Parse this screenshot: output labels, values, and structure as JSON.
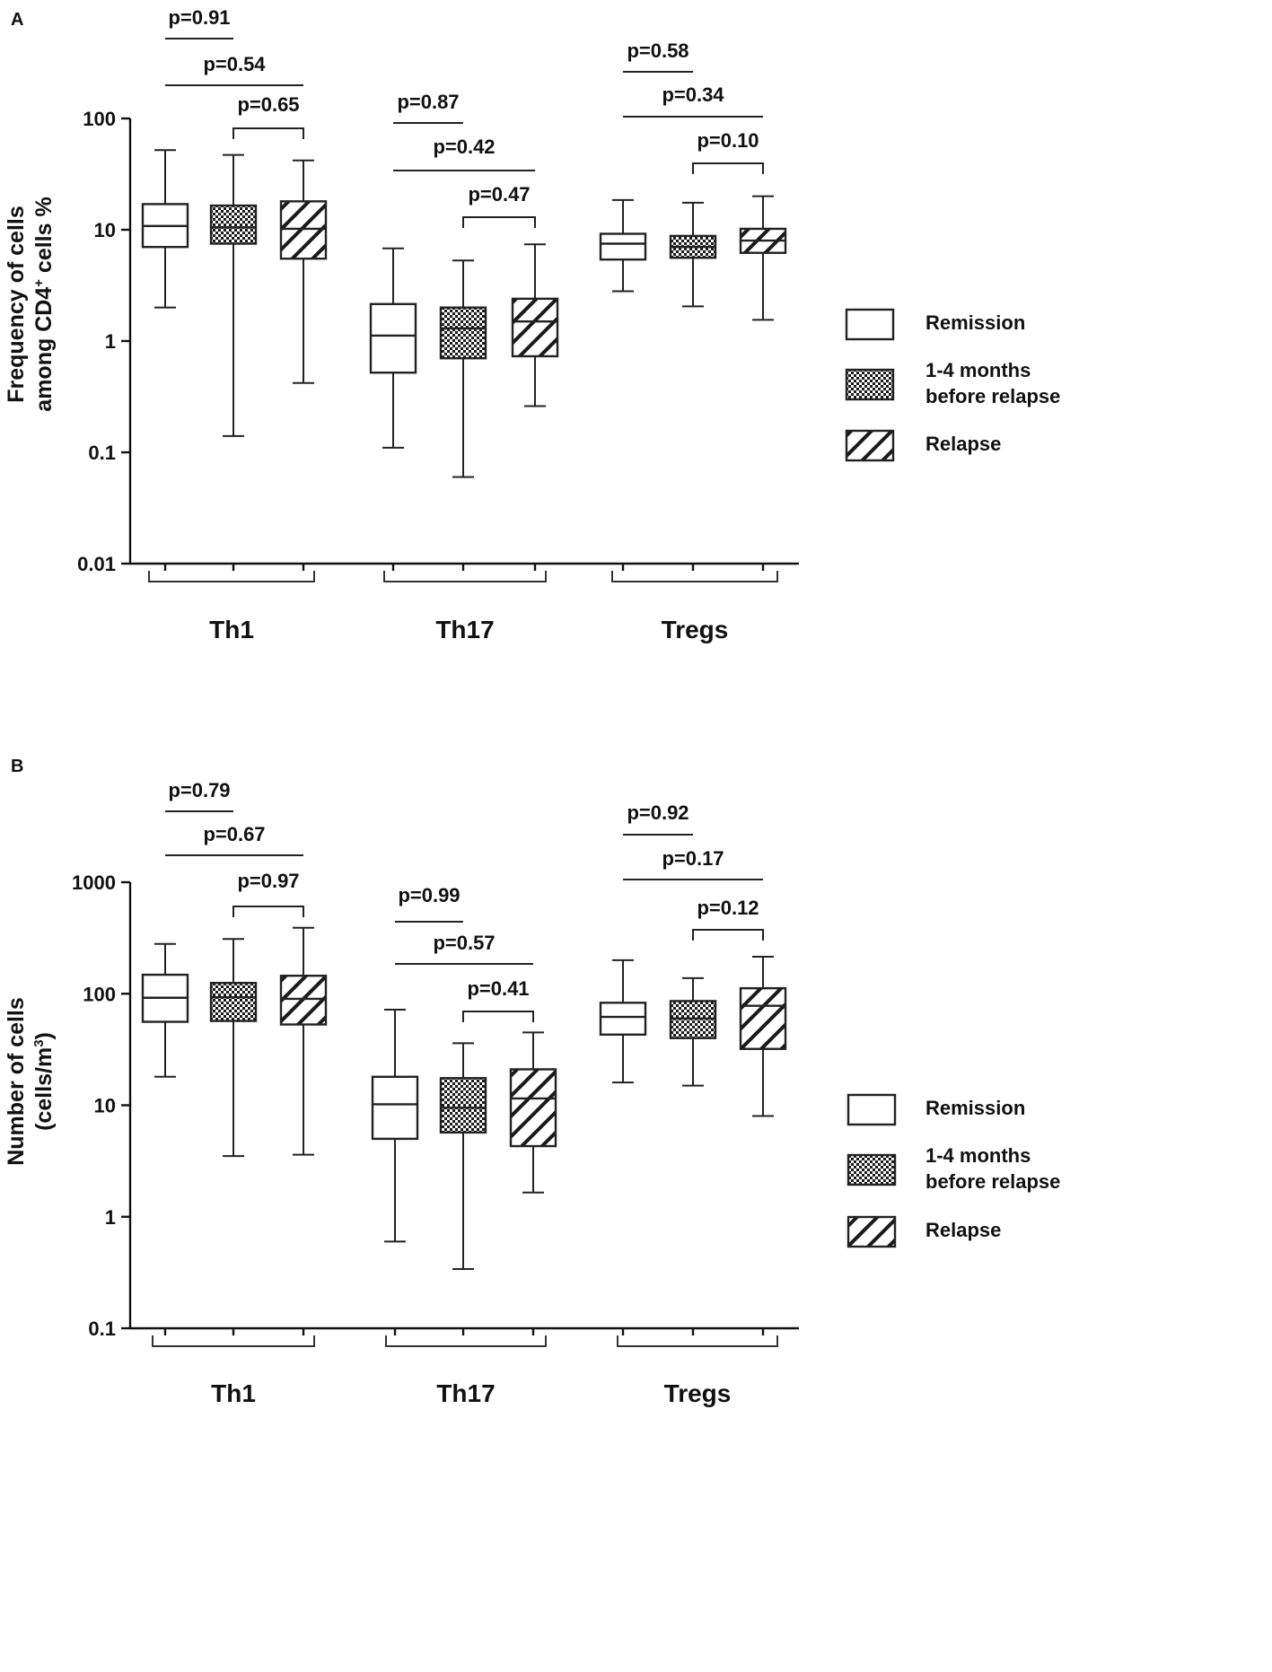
{
  "chart_data": [
    {
      "panel_label": "A",
      "type": "box",
      "scale": "log",
      "ylabel_line1": "Frequency of cells",
      "ylabel_line2_pre": "among CD4",
      "ylabel_sup": "+",
      "ylabel_line2_post": " cells %",
      "ylim": [
        0.01,
        100
      ],
      "ticks": [
        {
          "value": 100,
          "label": "100"
        },
        {
          "value": 10,
          "label": "10"
        },
        {
          "value": 1,
          "label": "1"
        },
        {
          "value": 0.1,
          "label": "0.1"
        },
        {
          "value": 0.01,
          "label": "0.01"
        }
      ],
      "groups": [
        {
          "name": "Th1",
          "boxes": [
            {
              "series": "Remission",
              "min": 2.0,
              "q1": 7.0,
              "median": 10.8,
              "q3": 17.0,
              "max": 52
            },
            {
              "series": "1-4 months before relapse",
              "min": 0.14,
              "q1": 7.5,
              "median": 10.5,
              "q3": 16.5,
              "max": 47
            },
            {
              "series": "Relapse",
              "min": 0.42,
              "q1": 5.5,
              "median": 10.2,
              "q3": 18.0,
              "max": 42
            }
          ],
          "pvalues": [
            {
              "label": "p=0.91",
              "from": 0,
              "to": 1
            },
            {
              "label": "p=0.54",
              "from": 0,
              "to": 2
            },
            {
              "label": "p=0.65",
              "from": 1,
              "to": 2
            }
          ]
        },
        {
          "name": "Th17",
          "boxes": [
            {
              "series": "Remission",
              "min": 0.11,
              "q1": 0.52,
              "median": 1.12,
              "q3": 2.15,
              "max": 6.8
            },
            {
              "series": "1-4 months before relapse",
              "min": 0.06,
              "q1": 0.7,
              "median": 1.3,
              "q3": 2.0,
              "max": 5.3
            },
            {
              "series": "Relapse",
              "min": 0.26,
              "q1": 0.73,
              "median": 1.5,
              "q3": 2.4,
              "max": 7.4
            }
          ],
          "pvalues": [
            {
              "label": "p=0.87",
              "from": 0,
              "to": 1
            },
            {
              "label": "p=0.42",
              "from": 0,
              "to": 2
            },
            {
              "label": "p=0.47",
              "from": 1,
              "to": 2
            }
          ]
        },
        {
          "name": "Tregs",
          "boxes": [
            {
              "series": "Remission",
              "min": 2.8,
              "q1": 5.4,
              "median": 7.5,
              "q3": 9.2,
              "max": 18.5
            },
            {
              "series": "1-4 months before relapse",
              "min": 2.05,
              "q1": 5.6,
              "median": 7.0,
              "q3": 8.8,
              "max": 17.5
            },
            {
              "series": "Relapse",
              "min": 1.55,
              "q1": 6.2,
              "median": 8.0,
              "q3": 10.2,
              "max": 20
            }
          ],
          "pvalues": [
            {
              "label": "p=0.58",
              "from": 0,
              "to": 1
            },
            {
              "label": "p=0.34",
              "from": 0,
              "to": 2
            },
            {
              "label": "p=0.10",
              "from": 1,
              "to": 2
            }
          ]
        }
      ]
    },
    {
      "panel_label": "B",
      "type": "box",
      "scale": "log",
      "ylabel_line1": "Number of cells",
      "ylabel_line2_pre": "(cells/m",
      "ylabel_sup": "3",
      "ylabel_line2_post": ")",
      "ylim": [
        0.1,
        1000
      ],
      "ticks": [
        {
          "value": 1000,
          "label": "1000"
        },
        {
          "value": 100,
          "label": "100"
        },
        {
          "value": 10,
          "label": "10"
        },
        {
          "value": 1,
          "label": "1"
        },
        {
          "value": 0.1,
          "label": "0.1"
        }
      ],
      "groups": [
        {
          "name": "Th1",
          "boxes": [
            {
              "series": "Remission",
              "min": 18,
              "q1": 56,
              "median": 92,
              "q3": 148,
              "max": 280
            },
            {
              "series": "1-4 months before relapse",
              "min": 3.5,
              "q1": 57,
              "median": 93,
              "q3": 125,
              "max": 310
            },
            {
              "series": "Relapse",
              "min": 3.6,
              "q1": 53,
              "median": 90,
              "q3": 145,
              "max": 390
            }
          ],
          "pvalues": [
            {
              "label": "p=0.79",
              "from": 0,
              "to": 1
            },
            {
              "label": "p=0.67",
              "from": 0,
              "to": 2
            },
            {
              "label": "p=0.97",
              "from": 1,
              "to": 2
            }
          ]
        },
        {
          "name": "Th17",
          "boxes": [
            {
              "series": "Remission",
              "min": 0.6,
              "q1": 5.0,
              "median": 10.2,
              "q3": 18,
              "max": 72
            },
            {
              "series": "1-4 months before relapse",
              "min": 0.34,
              "q1": 5.7,
              "median": 9.5,
              "q3": 17.5,
              "max": 36
            },
            {
              "series": "Relapse",
              "min": 1.65,
              "q1": 4.3,
              "median": 11.5,
              "q3": 21,
              "max": 45
            }
          ],
          "pvalues": [
            {
              "label": "p=0.99",
              "from": 0,
              "to": 1
            },
            {
              "label": "p=0.57",
              "from": 0,
              "to": 2
            },
            {
              "label": "p=0.41",
              "from": 1,
              "to": 2
            }
          ]
        },
        {
          "name": "Tregs",
          "boxes": [
            {
              "series": "Remission",
              "min": 16,
              "q1": 43,
              "median": 62,
              "q3": 83,
              "max": 200
            },
            {
              "series": "1-4 months before relapse",
              "min": 15,
              "q1": 40,
              "median": 60,
              "q3": 86,
              "max": 138
            },
            {
              "series": "Relapse",
              "min": 8,
              "q1": 32,
              "median": 78,
              "q3": 112,
              "max": 215
            }
          ],
          "pvalues": [
            {
              "label": "p=0.92",
              "from": 0,
              "to": 1
            },
            {
              "label": "p=0.17",
              "from": 0,
              "to": 2
            },
            {
              "label": "p=0.12",
              "from": 1,
              "to": 2
            }
          ]
        }
      ]
    }
  ],
  "legend": [
    {
      "pattern": "plain",
      "line1": "Remission",
      "line2": ""
    },
    {
      "pattern": "checker",
      "line1": "1-4 months",
      "line2": "before relapse"
    },
    {
      "pattern": "hatch",
      "line1": "Relapse",
      "line2": ""
    }
  ]
}
